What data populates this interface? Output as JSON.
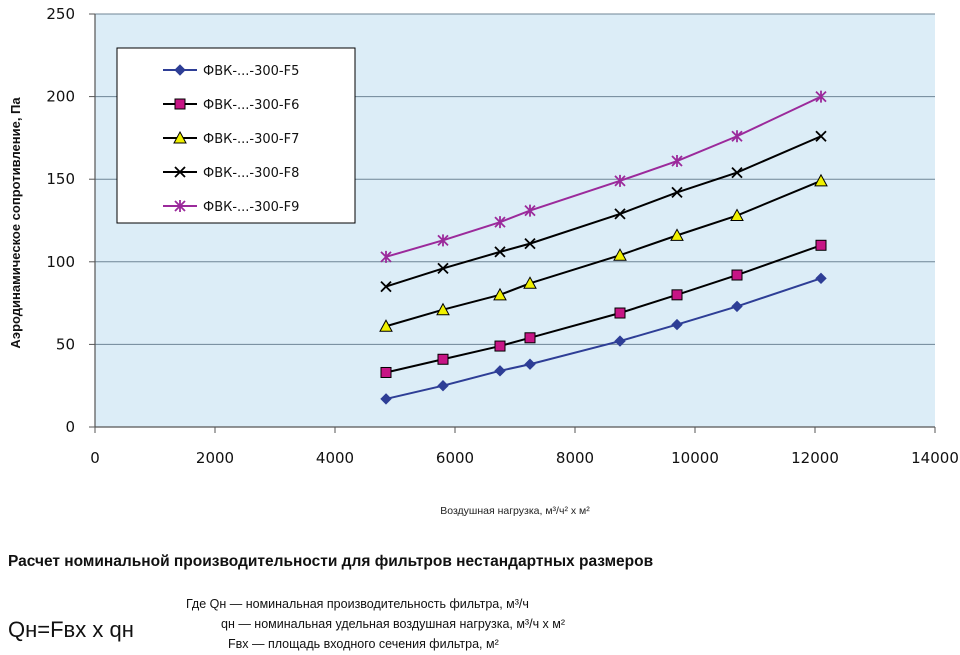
{
  "chart_data": {
    "type": "line",
    "title": "",
    "xlabel": "Воздушная нагрузка, м³/ч² х м²",
    "ylabel": "Аэродинамическое сопротивление, Па",
    "xlim": [
      0,
      14000
    ],
    "ylim": [
      0,
      250
    ],
    "xticks": [
      0,
      2000,
      4000,
      6000,
      8000,
      10000,
      12000,
      14000
    ],
    "yticks": [
      0,
      50,
      100,
      150,
      200,
      250
    ],
    "grid": "horizontal",
    "legend_position": "top-left",
    "background": "#dcedf7",
    "series": [
      {
        "name": "ФВК-...-300-F5",
        "marker": "diamond",
        "color": "#2e3e96",
        "x": [
          4850,
          5800,
          6750,
          7250,
          8750,
          9700,
          10700,
          12100
        ],
        "y": [
          17,
          25,
          34,
          38,
          52,
          62,
          73,
          90
        ]
      },
      {
        "name": "ФВК-...-300-F6",
        "marker": "square",
        "color": "#c71585",
        "line_color": "#000000",
        "x": [
          4850,
          5800,
          6750,
          7250,
          8750,
          9700,
          10700,
          12100
        ],
        "y": [
          33,
          41,
          49,
          54,
          69,
          80,
          92,
          110
        ]
      },
      {
        "name": "ФВК-...-300-F7",
        "marker": "triangle",
        "color": "#f0f000",
        "line_color": "#000000",
        "x": [
          4850,
          5800,
          6750,
          7250,
          8750,
          9700,
          10700,
          12100
        ],
        "y": [
          61,
          71,
          80,
          87,
          104,
          116,
          128,
          149
        ]
      },
      {
        "name": "ФВК-...-300-F8",
        "marker": "x",
        "color": "#000000",
        "x": [
          4850,
          5800,
          6750,
          7250,
          8750,
          9700,
          10700,
          12100
        ],
        "y": [
          85,
          96,
          106,
          111,
          129,
          142,
          154,
          176
        ]
      },
      {
        "name": "ФВК-...-300-F9",
        "marker": "star",
        "color": "#9b2a9b",
        "x": [
          4850,
          5800,
          6750,
          7250,
          8750,
          9700,
          10700,
          12100
        ],
        "y": [
          103,
          113,
          124,
          131,
          149,
          161,
          176,
          200
        ]
      }
    ]
  },
  "section": {
    "title": "Расчет номинальной производительности для фильтров нестандартных размеров",
    "formula": "Qн=Fвх х qн",
    "definitions": [
      "Где Qн — номинальная производительность фильтра, м³/ч",
      "qн  — номинальная удельная воздушная нагрузка, м³/ч х м²",
      "Fвх  — площадь входного сечения фильтра, м²"
    ]
  }
}
